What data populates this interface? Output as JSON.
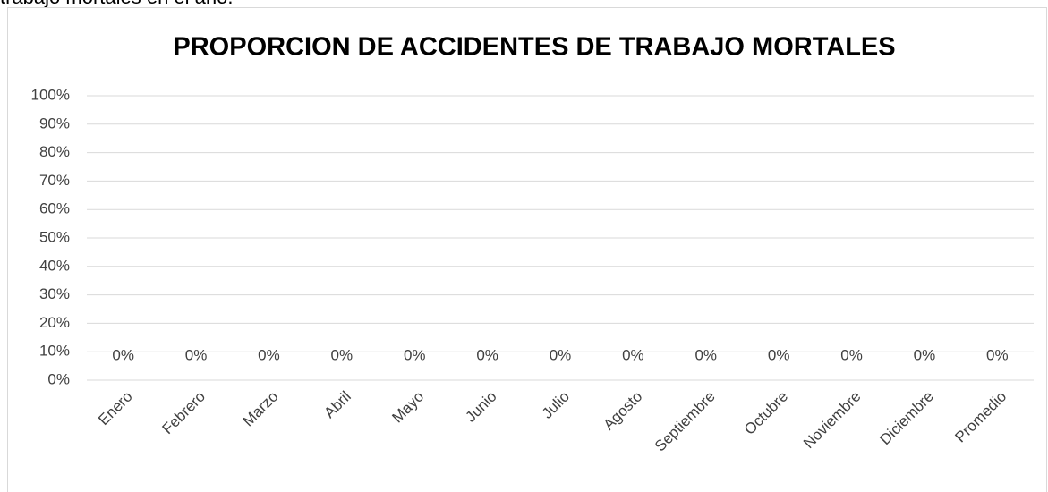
{
  "caption": "trabajo mortales en el año.",
  "chart_data": {
    "type": "bar",
    "title": "PROPORCION DE ACCIDENTES DE TRABAJO MORTALES",
    "categories": [
      "Enero",
      "Febrero",
      "Marzo",
      "Abril",
      "Mayo",
      "Junio",
      "Julio",
      "Agosto",
      "Septiembre",
      "Octubre",
      "Noviembre",
      "Diciembre",
      "Promedio"
    ],
    "values": [
      0,
      0,
      0,
      0,
      0,
      0,
      0,
      0,
      0,
      0,
      0,
      0,
      0
    ],
    "value_labels": [
      "0%",
      "0%",
      "0%",
      "0%",
      "0%",
      "0%",
      "0%",
      "0%",
      "0%",
      "0%",
      "0%",
      "0%",
      "0%"
    ],
    "color": "#4472c4",
    "ylim": [
      0,
      100
    ],
    "yticks": [
      {
        "value": 0,
        "label": "0%"
      },
      {
        "value": 10,
        "label": "10%"
      },
      {
        "value": 20,
        "label": "20%"
      },
      {
        "value": 30,
        "label": "30%"
      },
      {
        "value": 40,
        "label": "40%"
      },
      {
        "value": 50,
        "label": "50%"
      },
      {
        "value": 60,
        "label": "60%"
      },
      {
        "value": 70,
        "label": "70%"
      },
      {
        "value": 80,
        "label": "80%"
      },
      {
        "value": 90,
        "label": "90%"
      },
      {
        "value": 100,
        "label": "100%"
      }
    ],
    "grid": true
  }
}
